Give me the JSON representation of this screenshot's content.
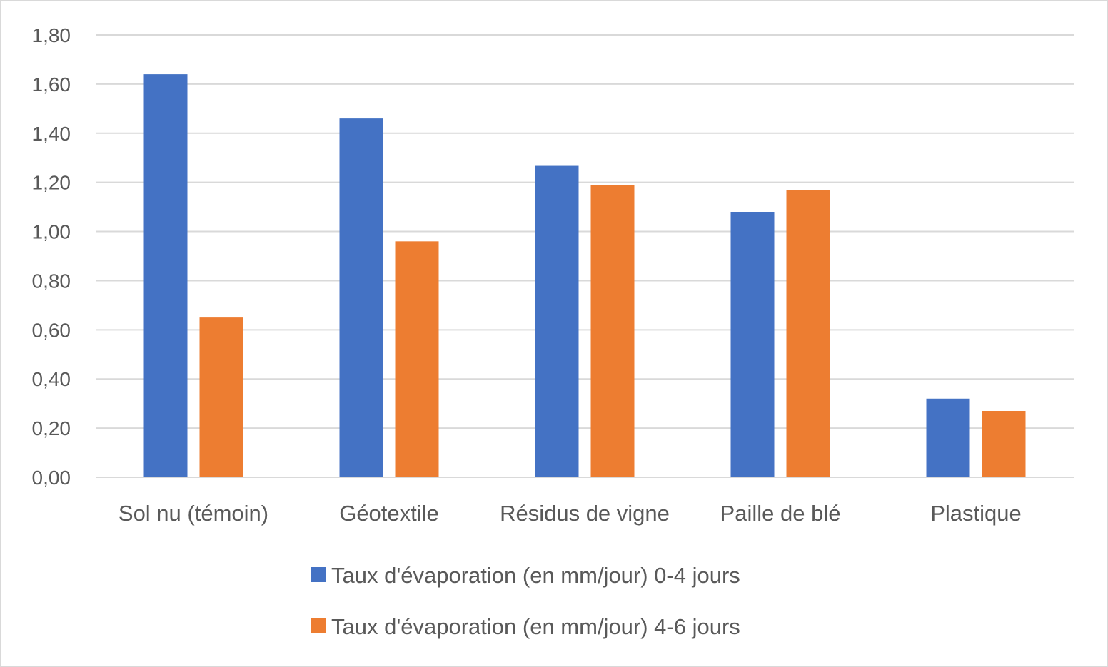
{
  "chart_data": {
    "type": "bar",
    "title": "",
    "xlabel": "",
    "ylabel": "",
    "categories": [
      "Sol nu (témoin)",
      "Géotextile",
      "Résidus de vigne",
      "Paille de blé",
      "Plastique"
    ],
    "series": [
      {
        "name": "Taux d'évaporation (en mm/jour) 0-4 jours",
        "color": "#4472c4",
        "values": [
          1.64,
          1.46,
          1.27,
          1.08,
          0.32
        ]
      },
      {
        "name": "Taux d'évaporation (en mm/jour) 4-6 jours",
        "color": "#ed7d31",
        "values": [
          0.65,
          0.96,
          1.19,
          1.17,
          0.27
        ]
      }
    ],
    "ylim": [
      0,
      1.8
    ],
    "yticks": [
      "0,00",
      "0,20",
      "0,40",
      "0,60",
      "0,80",
      "1,00",
      "1,20",
      "1,40",
      "1,60",
      "1,80"
    ],
    "grid": true,
    "legend_position": "bottom"
  }
}
